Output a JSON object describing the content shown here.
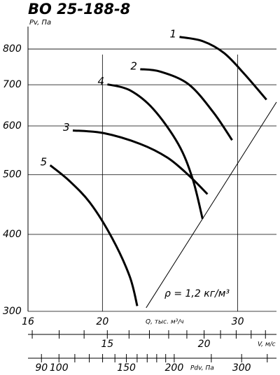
{
  "chart_data": {
    "type": "line",
    "title": "ВО 25-188-8",
    "x_label": "Q, тыс. м³/ч",
    "y_label": "Pv, Па",
    "annotation": "ρ = 1,2 кг/м³",
    "x_scale": "log",
    "y_scale": "log",
    "grid": true,
    "color": "#000000",
    "xlim": [
      16,
      33.7
    ],
    "xticks": [
      16,
      20,
      30
    ],
    "ylim": [
      300,
      870
    ],
    "yticks": [
      300,
      400,
      500,
      600,
      700,
      800
    ],
    "series": [
      {
        "name": "1",
        "x": [
          25.2,
          27.0,
          28.8,
          30.6,
          32.7
        ],
        "values": [
          837,
          824,
          788,
          729,
          662
        ]
      },
      {
        "name": "2",
        "x": [
          22.4,
          23.8,
          25.9,
          27.9,
          29.5
        ],
        "values": [
          742,
          735,
          701,
          631,
          569
        ]
      },
      {
        "name": "3",
        "x": [
          18.3,
          20.1,
          22.4,
          24.3,
          25.9,
          27.4
        ],
        "values": [
          590,
          584,
          561,
          533,
          499,
          465
        ]
      },
      {
        "name": "4",
        "x": [
          20.3,
          21.7,
          23.3,
          25.1,
          26.2,
          27.0
        ],
        "values": [
          701,
          686,
          639,
          561,
          493,
          424
        ]
      },
      {
        "name": "5",
        "x": [
          17.1,
          18.1,
          19.3,
          20.6,
          21.7,
          22.2
        ],
        "values": [
          518,
          489,
          449,
          394,
          342,
          306
        ]
      }
    ],
    "system_line": {
      "x": [
        22.8,
        33.7
      ],
      "values": [
        304,
        656
      ]
    },
    "secondary_axes": [
      {
        "label": "V, м/с",
        "scale": "log",
        "xlim": [
          11.85,
          24.8
        ],
        "xticks": [
          15,
          20
        ],
        "minor_ticks": [
          12,
          13,
          14,
          16,
          17,
          18,
          19,
          21,
          22,
          23,
          24
        ]
      },
      {
        "label": "Pdv, Па",
        "scale": "log",
        "xlim": [
          83,
          370
        ],
        "xticks": [
          90,
          100,
          150,
          200,
          300
        ],
        "minor_ticks": [
          110,
          120,
          130,
          140,
          160,
          170,
          180,
          190,
          250,
          350
        ]
      }
    ]
  }
}
